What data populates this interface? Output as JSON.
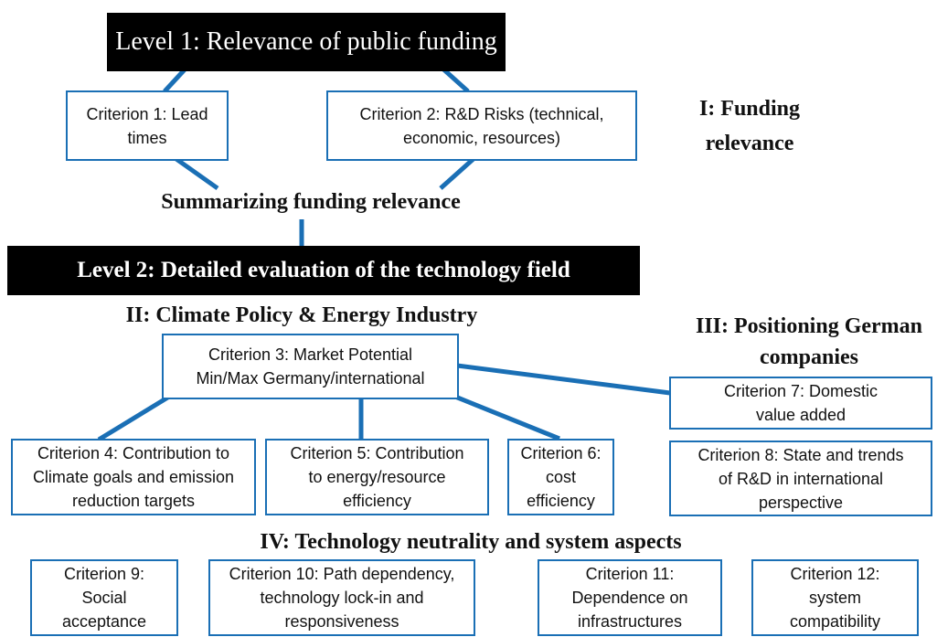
{
  "level1": {
    "title": "Level 1: Relevance of public funding"
  },
  "criterion1": {
    "lines": [
      "Criterion 1: Lead",
      "times"
    ]
  },
  "criterion2": {
    "lines": [
      "Criterion 2: R&D Risks (technical,",
      "economic, resources)"
    ]
  },
  "section1": {
    "lines": [
      "I: Funding",
      "relevance"
    ]
  },
  "summary": "Summarizing funding relevance",
  "level2": {
    "title": "Level 2: Detailed evaluation of the technology field"
  },
  "section2": "II: Climate Policy & Energy Industry",
  "section3": {
    "lines": [
      "III: Positioning German",
      "companies"
    ]
  },
  "criterion3": {
    "lines": [
      "Criterion 3: Market Potential",
      "Min/Max Germany/international"
    ]
  },
  "criterion4": {
    "lines": [
      "Criterion 4: Contribution to",
      "Climate goals and emission",
      "reduction targets"
    ]
  },
  "criterion5": {
    "lines": [
      "Criterion 5: Contribution",
      "to energy/resource",
      "efficiency"
    ]
  },
  "criterion6": {
    "lines": [
      "Criterion 6:",
      "cost",
      "efficiency"
    ]
  },
  "criterion7": {
    "lines": [
      "Criterion 7: Domestic",
      "value added"
    ]
  },
  "criterion8": {
    "lines": [
      "Criterion 8: State and trends",
      "of R&D in international",
      "perspective"
    ]
  },
  "section4": "IV: Technology neutrality and system aspects",
  "criterion9": {
    "lines": [
      "Criterion 9:",
      "Social",
      "acceptance"
    ]
  },
  "criterion10": {
    "lines": [
      "Criterion 10: Path dependency,",
      "technology lock-in and",
      "responsiveness"
    ]
  },
  "criterion11": {
    "lines": [
      "Criterion 11:",
      "Dependence on",
      "infrastructures"
    ]
  },
  "criterion12": {
    "lines": [
      "Criterion 12:",
      "system",
      "compatibility"
    ]
  }
}
